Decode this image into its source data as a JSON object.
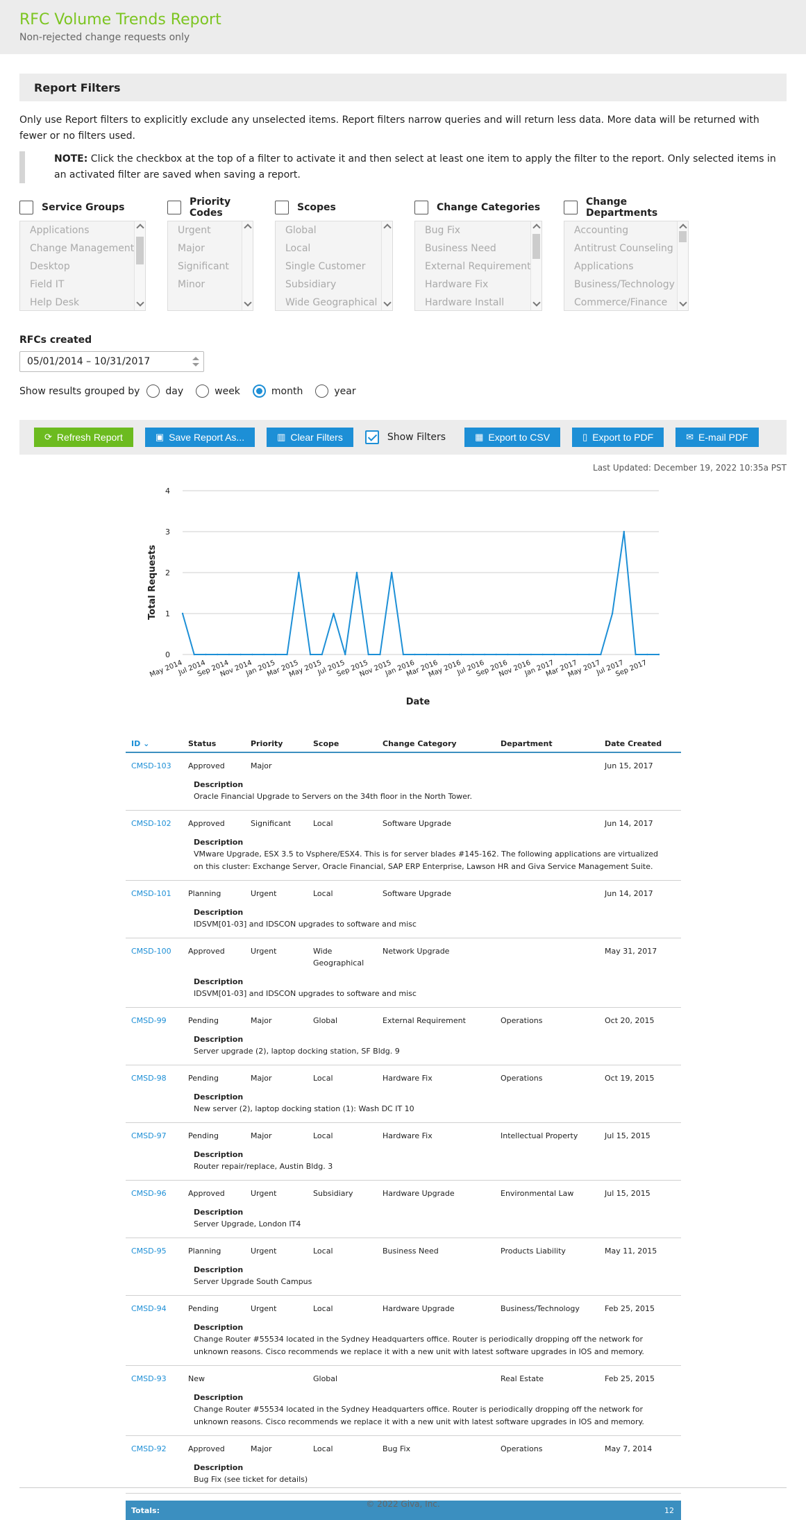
{
  "header": {
    "title": "RFC Volume Trends Report",
    "subtitle": "Non-rejected change requests only"
  },
  "filters": {
    "heading": "Report Filters",
    "intro": "Only use Report filters to explicitly exclude any unselected items. Report filters narrow queries and will return less data. More data will be returned with fewer or no filters used.",
    "note_label": "NOTE:",
    "note_text": " Click the checkbox at the top of a filter to activate it and then select at least one item to apply the filter to the report. Only selected items in an activated filter are saved when saving a report.",
    "groups": [
      {
        "label": "Service Groups",
        "options": [
          "Applications",
          "Change Management",
          "Desktop",
          "Field IT",
          "Help Desk"
        ]
      },
      {
        "label": "Priority Codes",
        "options": [
          "Urgent",
          "Major",
          "Significant",
          "Minor"
        ]
      },
      {
        "label": "Scopes",
        "options": [
          "Global",
          "Local",
          "Single Customer",
          "Subsidiary",
          "Wide Geographical"
        ]
      },
      {
        "label": "Change Categories",
        "options": [
          "Bug Fix",
          "Business Need",
          "External Requirement",
          "Hardware Fix",
          "Hardware Install"
        ]
      },
      {
        "label": "Change Departments",
        "options": [
          "Accounting",
          "Antitrust Counseling",
          "Applications",
          "Business/Technology",
          "Commerce/Finance"
        ]
      }
    ]
  },
  "rfcs": {
    "label": "RFCs created",
    "date_range": "05/01/2014 – 10/31/2017"
  },
  "grouping": {
    "label": "Show results grouped by",
    "options": [
      "day",
      "week",
      "month",
      "year"
    ],
    "selected": "month"
  },
  "toolbar": {
    "refresh": "Refresh Report",
    "save": "Save Report As...",
    "clear": "Clear Filters",
    "show_filters": "Show Filters",
    "export_csv": "Export to CSV",
    "export_pdf": "Export to PDF",
    "email_pdf": "E-mail PDF"
  },
  "last_updated": "Last Updated: December 19, 2022 10:35a PST",
  "chart_data": {
    "type": "line",
    "xlabel": "Date",
    "ylabel": "Total Requests",
    "ylim": [
      0,
      4
    ],
    "yticks": [
      0,
      1,
      2,
      3,
      4
    ],
    "grid": true,
    "tick_labels": [
      "May 2014",
      "Jul 2014",
      "Sep 2014",
      "Nov 2014",
      "Jan 2015",
      "Mar 2015",
      "May 2015",
      "Jul 2015",
      "Sep 2015",
      "Nov 2015",
      "Jan 2016",
      "Mar 2016",
      "May 2016",
      "Jul 2016",
      "Sep 2016",
      "Nov 2016",
      "Jan 2017",
      "Mar 2017",
      "May 2017",
      "Jul 2017",
      "Sep 2017"
    ],
    "x": [
      "May 2014",
      "Jun 2014",
      "Jul 2014",
      "Aug 2014",
      "Sep 2014",
      "Oct 2014",
      "Nov 2014",
      "Dec 2014",
      "Jan 2015",
      "Feb 2015",
      "Mar 2015",
      "Apr 2015",
      "May 2015",
      "Jun 2015",
      "Jul 2015",
      "Aug 2015",
      "Sep 2015",
      "Oct 2015",
      "Nov 2015",
      "Dec 2015",
      "Jan 2016",
      "Feb 2016",
      "Mar 2016",
      "Apr 2016",
      "May 2016",
      "Jun 2016",
      "Jul 2016",
      "Aug 2016",
      "Sep 2016",
      "Oct 2016",
      "Nov 2016",
      "Dec 2016",
      "Jan 2017",
      "Feb 2017",
      "Mar 2017",
      "Apr 2017",
      "May 2017",
      "Jun 2017",
      "Jul 2017",
      "Aug 2017",
      "Sep 2017",
      "Oct 2017"
    ],
    "values": [
      1,
      0,
      0,
      0,
      0,
      0,
      0,
      0,
      0,
      0,
      2,
      0,
      0,
      1,
      0,
      2,
      0,
      0,
      2,
      0,
      0,
      0,
      0,
      0,
      0,
      0,
      0,
      0,
      0,
      0,
      0,
      0,
      0,
      0,
      0,
      0,
      0,
      1,
      3,
      0,
      0,
      0
    ],
    "color": "#1d8fd6"
  },
  "table": {
    "columns": [
      "ID",
      "Status",
      "Priority",
      "Scope",
      "Change Category",
      "Department",
      "Date Created"
    ],
    "description_label": "Description",
    "rows": [
      {
        "id": "CMSD-103",
        "status": "Approved",
        "priority": "Major",
        "scope": "",
        "category": "",
        "department": "",
        "date": "Jun 15, 2017",
        "desc": "Oracle Financial Upgrade to Servers on the 34th floor in the North Tower."
      },
      {
        "id": "CMSD-102",
        "status": "Approved",
        "priority": "Significant",
        "scope": "Local",
        "category": "Software Upgrade",
        "department": "",
        "date": "Jun 14, 2017",
        "desc": "VMware Upgrade, ESX 3.5 to Vsphere/ESX4. This is for server blades #145-162. The following applications are virtualized on this cluster: Exchange Server, Oracle Financial, SAP ERP Enterprise, Lawson HR and Giva Service Management Suite."
      },
      {
        "id": "CMSD-101",
        "status": "Planning",
        "priority": "Urgent",
        "scope": "Local",
        "category": "Software Upgrade",
        "department": "",
        "date": "Jun 14, 2017",
        "desc": "IDSVM[01-03] and IDSCON upgrades to software and misc"
      },
      {
        "id": "CMSD-100",
        "status": "Approved",
        "priority": "Urgent",
        "scope": "Wide Geographical",
        "category": "Network Upgrade",
        "department": "",
        "date": "May 31, 2017",
        "desc": "IDSVM[01-03] and IDSCON upgrades to software and misc"
      },
      {
        "id": "CMSD-99",
        "status": "Pending",
        "priority": "Major",
        "scope": "Global",
        "category": "External Requirement",
        "department": "Operations",
        "date": "Oct 20, 2015",
        "desc": "Server upgrade (2), laptop docking station, SF Bldg. 9"
      },
      {
        "id": "CMSD-98",
        "status": "Pending",
        "priority": "Major",
        "scope": "Local",
        "category": "Hardware Fix",
        "department": "Operations",
        "date": "Oct 19, 2015",
        "desc": "New server (2), laptop docking station (1): Wash DC IT 10"
      },
      {
        "id": "CMSD-97",
        "status": "Pending",
        "priority": "Major",
        "scope": "Local",
        "category": "Hardware Fix",
        "department": "Intellectual Property",
        "date": "Jul 15, 2015",
        "desc": "Router repair/replace, Austin Bldg. 3"
      },
      {
        "id": "CMSD-96",
        "status": "Approved",
        "priority": "Urgent",
        "scope": "Subsidiary",
        "category": "Hardware Upgrade",
        "department": "Environmental Law",
        "date": "Jul 15, 2015",
        "desc": "Server Upgrade, London IT4"
      },
      {
        "id": "CMSD-95",
        "status": "Planning",
        "priority": "Urgent",
        "scope": "Local",
        "category": "Business Need",
        "department": "Products Liability",
        "date": "May 11, 2015",
        "desc": "Server Upgrade South Campus"
      },
      {
        "id": "CMSD-94",
        "status": "Pending",
        "priority": "Urgent",
        "scope": "Local",
        "category": "Hardware Upgrade",
        "department": "Business/Technology",
        "date": "Feb 25, 2015",
        "desc": "Change Router #55534 located in the Sydney Headquarters office. Router is periodically dropping off the network for unknown reasons. Cisco recommends we replace it with a new unit with latest software upgrades in IOS and memory."
      },
      {
        "id": "CMSD-93",
        "status": "New",
        "priority": "",
        "scope": "Global",
        "category": "",
        "department": "Real Estate",
        "date": "Feb 25, 2015",
        "desc": "Change Router #55534 located in the Sydney Headquarters office. Router is periodically dropping off the network for unknown reasons. Cisco recommends we replace it with a new unit with latest software upgrades in IOS and memory."
      },
      {
        "id": "CMSD-92",
        "status": "Approved",
        "priority": "Major",
        "scope": "Local",
        "category": "Bug Fix",
        "department": "Operations",
        "date": "May 7, 2014",
        "desc": "Bug Fix (see ticket for details)"
      }
    ],
    "totals_label": "Totals:",
    "totals_value": "12"
  },
  "footer": "© 2022 Giva, Inc."
}
